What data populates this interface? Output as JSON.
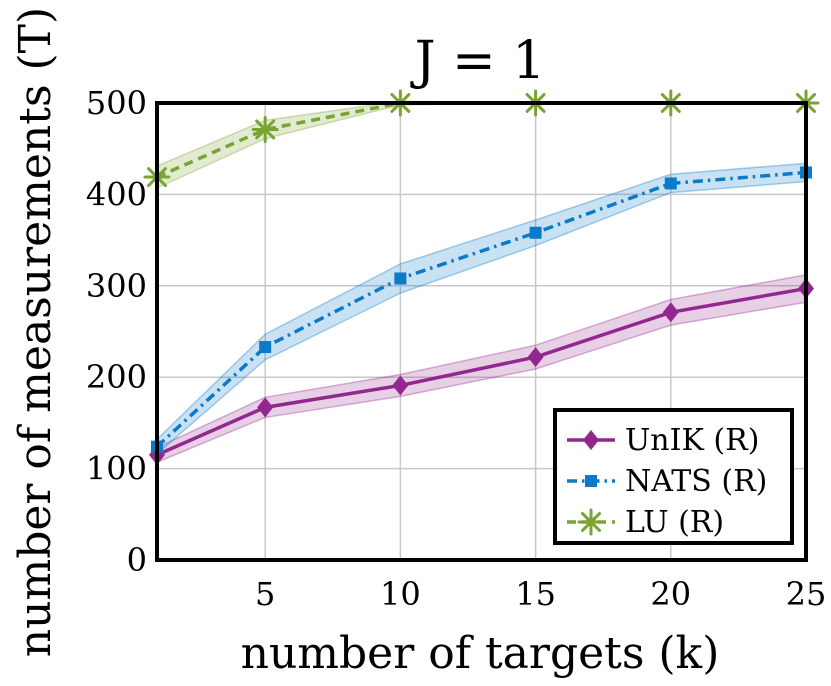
{
  "chart_data": {
    "type": "line",
    "title": "J = 1",
    "xlabel": "number of targets (k)",
    "ylabel": "number of measurements (T)",
    "xlim": [
      1,
      25
    ],
    "ylim": [
      0,
      500
    ],
    "xticks": [
      5,
      10,
      15,
      20,
      25
    ],
    "yticks": [
      0,
      100,
      200,
      300,
      400,
      500
    ],
    "grid": true,
    "legend_position": "bottom-right",
    "series": [
      {
        "name": "UnIK (R)",
        "color": "#92278f",
        "line_style": "solid",
        "marker": "diamond",
        "x": [
          1,
          5,
          10,
          15,
          20,
          25
        ],
        "y": [
          115,
          167,
          191,
          222,
          271,
          297
        ],
        "band_halfwidth": [
          8,
          11,
          12,
          13,
          14,
          15
        ]
      },
      {
        "name": "NATS (R)",
        "color": "#0a7ac9",
        "line_style": "dashdot",
        "marker": "square",
        "x": [
          1,
          5,
          10,
          15,
          20,
          25
        ],
        "y": [
          124,
          233,
          308,
          358,
          412,
          424
        ],
        "band_halfwidth": [
          8,
          14,
          16,
          14,
          10,
          10
        ]
      },
      {
        "name": "LU (R)",
        "color": "#79a332",
        "line_style": "dashed",
        "marker": "asterisk",
        "x": [
          1,
          5,
          10,
          15,
          20,
          25
        ],
        "y": [
          419,
          471,
          500,
          500,
          500,
          500
        ],
        "band_halfwidth": [
          12,
          10,
          2,
          0,
          0,
          0
        ]
      }
    ]
  }
}
